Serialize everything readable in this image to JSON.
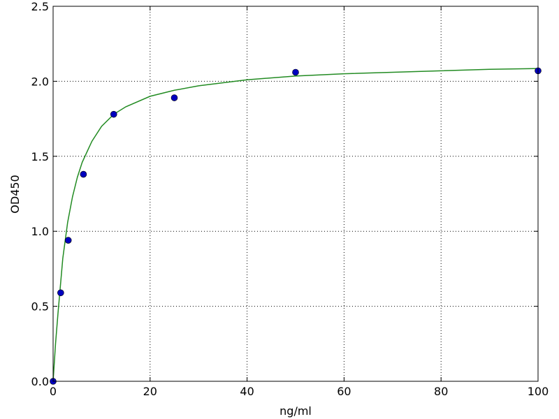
{
  "chart_data": {
    "type": "scatter",
    "xlabel": "ng/ml",
    "ylabel": "OD450",
    "xlim": [
      0,
      100
    ],
    "xticks": [
      0,
      20,
      40,
      60,
      80,
      100
    ],
    "ylim": [
      0,
      2.5
    ],
    "yticks": [
      {
        "value": 0,
        "label": "0.0"
      },
      0.5,
      {
        "value": 1,
        "label": "1.0"
      },
      1.5,
      {
        "value": 2,
        "label": "2.0"
      },
      2.5
    ],
    "grid": true,
    "series": [
      {
        "type": "scatter",
        "color": "#0000bf",
        "x": [
          0,
          1.5625,
          3.125,
          6.25,
          12.5,
          25,
          50,
          100
        ],
        "values": [
          0.0,
          0.59,
          0.94,
          1.38,
          1.78,
          1.89,
          2.06,
          2.07
        ]
      },
      {
        "type": "line",
        "color": "#228b22",
        "x": [
          0,
          0.5,
          1,
          2,
          3,
          4,
          5,
          6,
          8,
          10,
          12.5,
          15,
          20,
          25,
          30,
          40,
          50,
          60,
          70,
          80,
          90,
          100
        ],
        "values": [
          0,
          0.25,
          0.45,
          0.82,
          1.06,
          1.23,
          1.36,
          1.46,
          1.6,
          1.7,
          1.78,
          1.83,
          1.9,
          1.94,
          1.97,
          2.01,
          2.035,
          2.05,
          2.06,
          2.07,
          2.08,
          2.085
        ]
      }
    ]
  }
}
